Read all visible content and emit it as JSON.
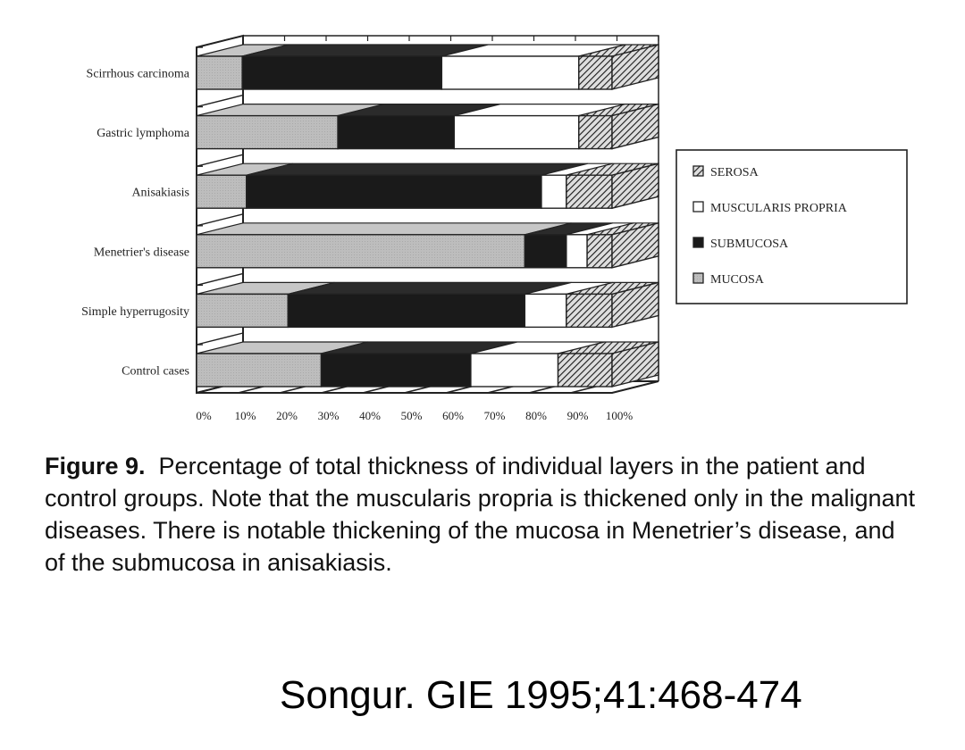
{
  "chart_data": {
    "type": "bar",
    "orientation": "horizontal",
    "stacked": true,
    "style": "3d",
    "categories": [
      "Scirrhous carcinoma",
      "Gastric lymphoma",
      "Anisakiasis",
      "Menetrier's disease",
      "Simple hyperrugosity",
      "Control cases"
    ],
    "series": [
      {
        "name": "MUCOSA",
        "values": [
          11,
          34,
          12,
          79,
          22,
          30
        ],
        "color": "#b8b8b8"
      },
      {
        "name": "SUBMUCOSA",
        "values": [
          48,
          28,
          71,
          10,
          57,
          36
        ],
        "color": "#1a1a1a"
      },
      {
        "name": "MUSCULARIS PROPRIA",
        "values": [
          33,
          30,
          6,
          5,
          10,
          21
        ],
        "color": "#ffffff"
      },
      {
        "name": "SEROSA",
        "values": [
          8,
          8,
          11,
          6,
          11,
          13
        ],
        "color": "#8a8a8a"
      }
    ],
    "x_ticks": [
      "0%",
      "10%",
      "20%",
      "30%",
      "40%",
      "50%",
      "60%",
      "70%",
      "80%",
      "90%",
      "100%"
    ],
    "xlim": [
      0,
      100
    ],
    "legend_order": [
      "SEROSA",
      "MUSCULARIS PROPRIA",
      "SUBMUCOSA",
      "MUCOSA"
    ],
    "legend_position": "right",
    "grid": false
  },
  "caption": {
    "lead": "Figure 9.",
    "text": "Percentage of total thickness of individual layers in the patient and control groups. Note that the muscularis propria is thickened only in the malignant diseases. There is notable thickening of the mucosa in Menetrier’s disease, and of the submucosa in anisakiasis."
  },
  "citation": "Songur. GIE 1995;41:468-474"
}
